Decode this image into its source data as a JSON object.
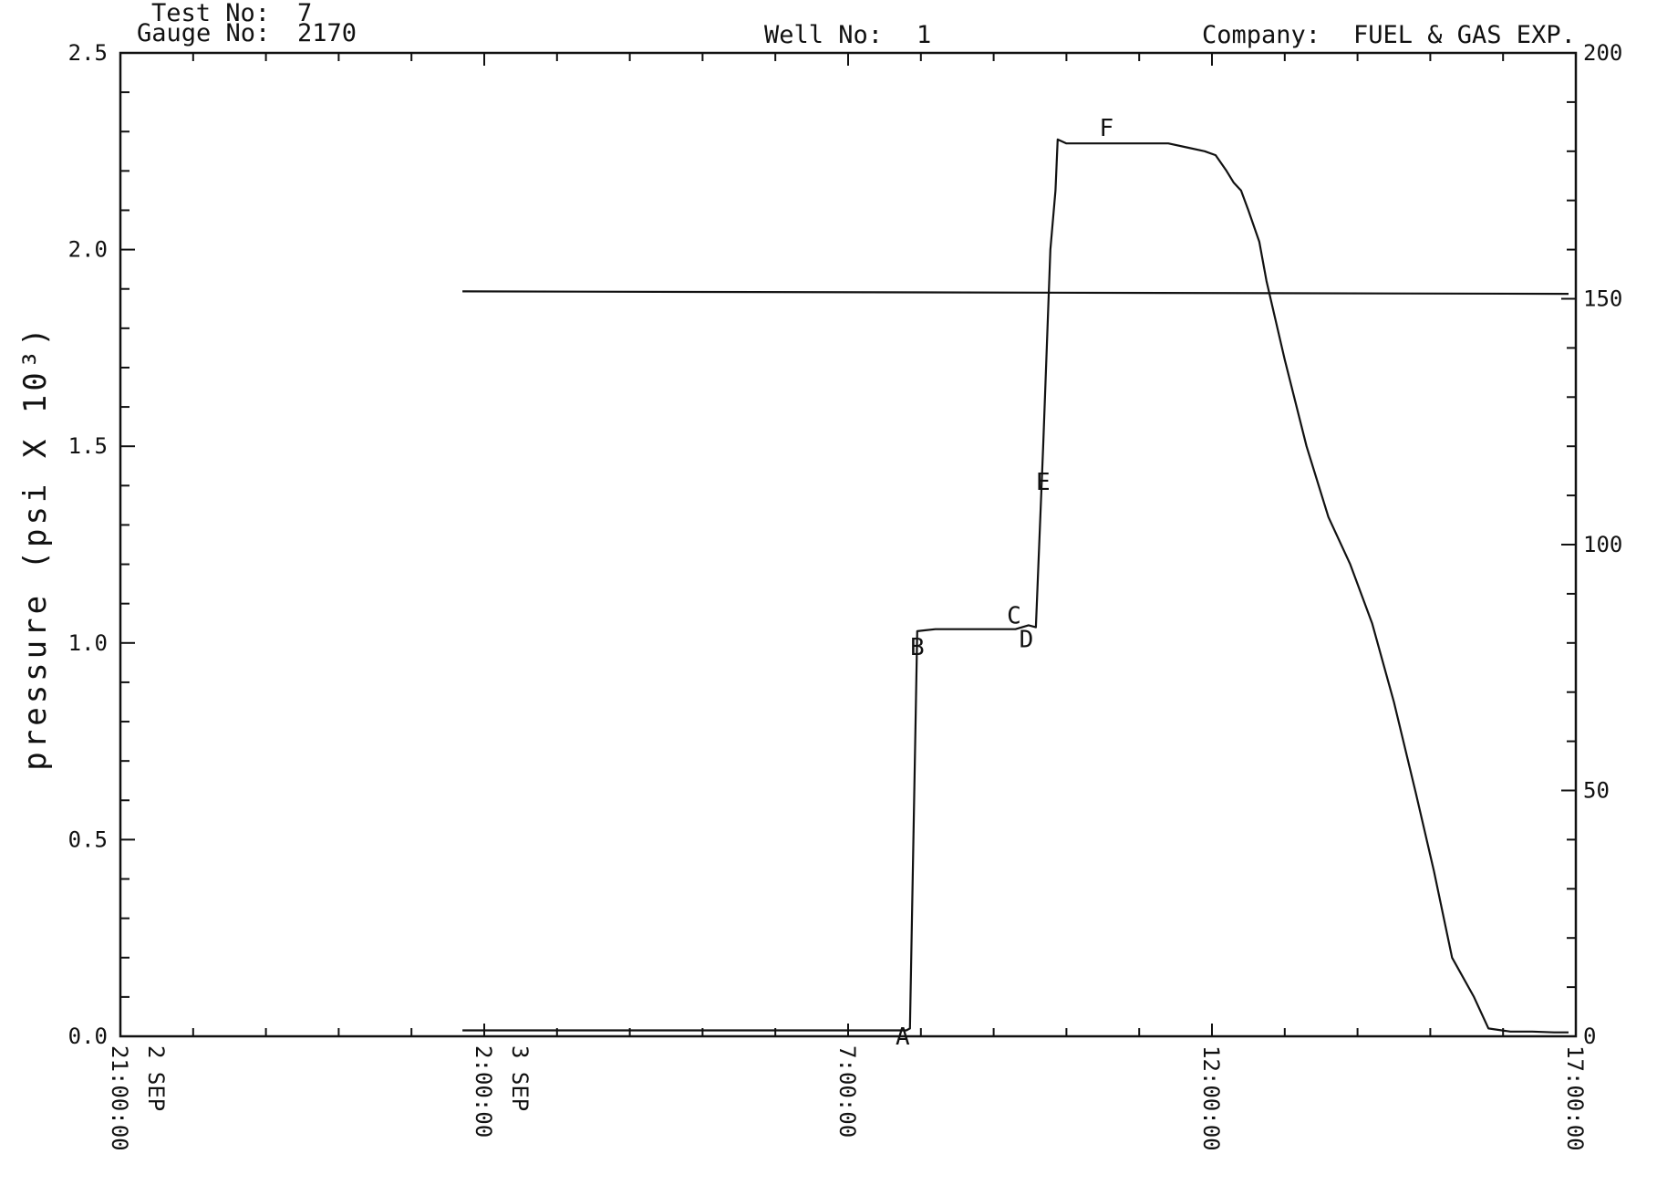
{
  "header": {
    "test_no_label": "Test No:",
    "test_no_value": "7",
    "gauge_no_label": "Gauge No:",
    "gauge_no_value": "2170",
    "well_no_label": "Well No:",
    "well_no_value": "1",
    "company_label": "Company:",
    "company_value": "FUEL & GAS EXP."
  },
  "chart_data": {
    "type": "line",
    "title": "",
    "xlabel": "",
    "ylabel": "pressure (psi X 10³)",
    "ylabel_right": "",
    "xlim_hours": [
      0,
      20
    ],
    "ylim": [
      0,
      2.5
    ],
    "ylim_right": [
      0,
      200
    ],
    "x_ticks": [
      {
        "hour": 0,
        "time": "21:00:00",
        "date": "2 SEP"
      },
      {
        "hour": 5,
        "time": "2:00:00",
        "date": "3 SEP"
      },
      {
        "hour": 10,
        "time": "7:00:00",
        "date": ""
      },
      {
        "hour": 15,
        "time": "12:00:00",
        "date": ""
      },
      {
        "hour": 20,
        "time": "17:00:00",
        "date": ""
      }
    ],
    "y_ticks": [
      "0.0",
      "0.5",
      "1.0",
      "1.5",
      "2.0",
      "2.5"
    ],
    "y_ticks_right": [
      "0",
      "50",
      "100",
      "150",
      "200"
    ],
    "series": [
      {
        "name": "",
        "axis": "left",
        "x_hours": [
          4.7,
          10.8,
          10.85,
          10.95,
          11.2,
          12.0,
          12.3,
          12.48,
          12.58,
          12.68,
          12.78,
          12.85,
          12.88,
          13.0,
          13.25,
          13.5,
          13.8,
          14.1,
          14.4,
          14.65,
          14.9,
          15.05,
          15.2,
          15.3,
          15.4,
          15.5,
          15.65,
          15.75,
          16.0,
          16.3,
          16.6,
          16.9,
          17.2,
          17.5,
          17.8,
          18.05,
          18.3,
          18.6,
          18.8,
          19.1,
          19.4,
          19.7,
          19.9
        ],
        "values": [
          0.015,
          0.015,
          0.02,
          1.03,
          1.035,
          1.035,
          1.035,
          1.045,
          1.04,
          1.5,
          2.0,
          2.15,
          2.28,
          2.27,
          2.27,
          2.27,
          2.27,
          2.27,
          2.27,
          2.26,
          2.25,
          2.24,
          2.2,
          2.17,
          2.15,
          2.1,
          2.02,
          1.92,
          1.72,
          1.5,
          1.32,
          1.2,
          1.05,
          0.85,
          0.62,
          0.42,
          0.2,
          0.1,
          0.02,
          0.012,
          0.012,
          0.01,
          0.01
        ]
      },
      {
        "name": "",
        "axis": "right",
        "x_hours": [
          4.7,
          19.9
        ],
        "values": [
          151.5,
          151.0
        ]
      }
    ],
    "annotations": [
      {
        "label": "A",
        "hour": 10.75,
        "value": 0.0
      },
      {
        "label": "B",
        "hour": 10.95,
        "value": 0.99
      },
      {
        "label": "C",
        "hour": 12.28,
        "value": 1.07
      },
      {
        "label": "D",
        "hour": 12.45,
        "value": 1.01
      },
      {
        "label": "E",
        "hour": 12.68,
        "value": 1.41
      },
      {
        "label": "F",
        "hour": 13.55,
        "value": 2.31
      }
    ],
    "grid": false,
    "colors": {
      "line": "#111111",
      "background": "#ffffff"
    }
  }
}
